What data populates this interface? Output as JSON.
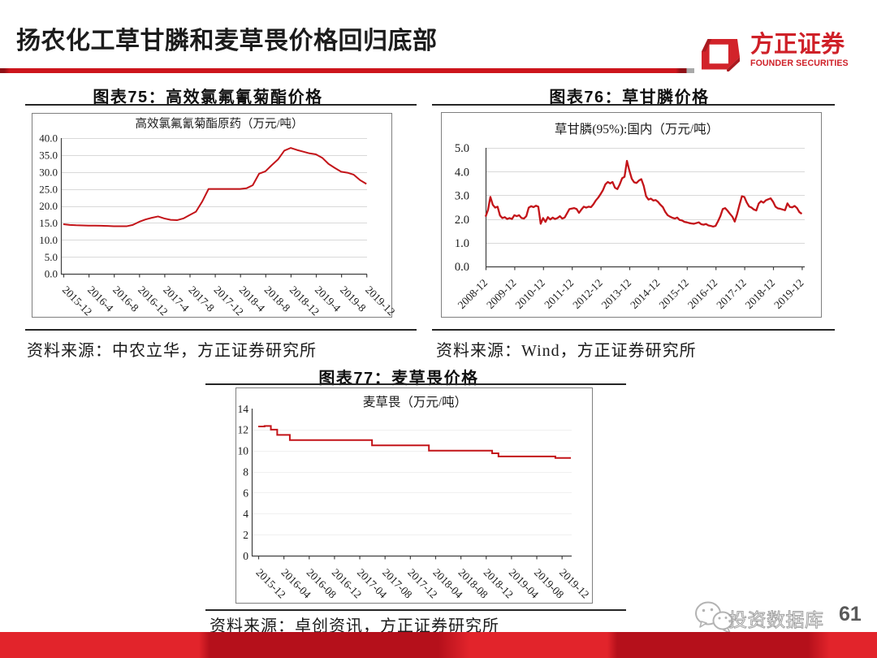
{
  "header": {
    "title": "扬农化工草甘膦和麦草畏价格回归底部",
    "accent_color": "#cd151c",
    "logo": {
      "cn": "方正证券",
      "en": "FOUNDER SECURITIES",
      "color": "#cf2028"
    }
  },
  "figures": [
    {
      "caption": "图表75：高效氯氟氰菊酯价格",
      "source": "资料来源：中农立华，方正证券研究所"
    },
    {
      "caption": "图表76：草甘膦价格",
      "source": "资料来源：Wind，方正证券研究所"
    },
    {
      "caption": "图表77：麦草畏价格",
      "source": "资料来源：卓创资讯，方正证券研究所"
    }
  ],
  "footer": {
    "watermark": "投资数据库",
    "page_number": "61"
  },
  "chart_data": [
    {
      "type": "line",
      "title": "高效氯氟氰菊酯原药（万元/吨）",
      "x_start": "2015-12",
      "x_tick_labels": [
        "2015-12",
        "2016-4",
        "2016-8",
        "2016-12",
        "2017-4",
        "2017-8",
        "2017-12",
        "2018-4",
        "2018-8",
        "2018-12",
        "2019-4",
        "2019-8",
        "2019-12"
      ],
      "months_per_tick": 4,
      "ylim": [
        0,
        40
      ],
      "y_tick_labels": [
        "0.0",
        "5.0",
        "10.0",
        "15.0",
        "20.0",
        "25.0",
        "30.0",
        "35.0",
        "40.0"
      ],
      "grid": true,
      "line_color": "#c31419",
      "series": [
        {
          "name": "高效氯氟氰菊酯原药",
          "values": [
            14.6,
            14.4,
            14.3,
            14.25,
            14.2,
            14.2,
            14.15,
            14.1,
            14.0,
            14.0,
            14.0,
            14.4,
            15.3,
            16.0,
            16.5,
            16.9,
            16.3,
            15.9,
            15.8,
            16.3,
            17.3,
            18.3,
            21.3,
            25.0,
            25.0,
            25.0,
            25.0,
            25.0,
            25.0,
            25.2,
            26.1,
            29.5,
            30.2,
            32.0,
            33.7,
            36.3,
            37.1,
            36.5,
            36.0,
            35.5,
            35.2,
            34.2,
            32.4,
            31.2,
            30.1,
            29.8,
            29.2,
            27.6,
            26.5
          ]
        }
      ]
    },
    {
      "type": "line",
      "title": "草甘膦(95%):国内（万元/吨）",
      "x_start": "2008-12",
      "x_tick_labels": [
        "2008-12",
        "2009-12",
        "2010-12",
        "2011-12",
        "2012-12",
        "2013-12",
        "2014-12",
        "2015-12",
        "2016-12",
        "2017-12",
        "2018-12",
        "2019-12"
      ],
      "months_per_tick": 12,
      "ylim": [
        0,
        5
      ],
      "y_tick_labels": [
        "0.0",
        "1.0",
        "2.0",
        "3.0",
        "4.0",
        "5.0"
      ],
      "grid": true,
      "line_color": "#c31419",
      "series": [
        {
          "name": "草甘膦(95%):国内",
          "values": [
            2.1,
            2.38,
            2.93,
            2.6,
            2.48,
            2.52,
            2.15,
            2.04,
            2.08,
            2,
            2.04,
            2,
            2.16,
            2.12,
            2.16,
            2.04,
            2.02,
            2.12,
            2.48,
            2.54,
            2.5,
            2.56,
            2.52,
            1.8,
            2.04,
            1.88,
            2.08,
            1.98,
            2.06,
            2,
            2.04,
            2.12,
            2.02,
            2.06,
            2.24,
            2.42,
            2.44,
            2.46,
            2.42,
            2.26,
            2.4,
            2.52,
            2.48,
            2.52,
            2.5,
            2.62,
            2.78,
            2.9,
            3.05,
            3.22,
            3.46,
            3.56,
            3.5,
            3.56,
            3.32,
            3.26,
            3.46,
            3.72,
            3.78,
            4.45,
            4.05,
            3.7,
            3.55,
            3.52,
            3.62,
            3.68,
            3.4,
            2.96,
            2.82,
            2.86,
            2.78,
            2.8,
            2.72,
            2.6,
            2.5,
            2.3,
            2.16,
            2.1,
            2.05,
            2.02,
            2.06,
            1.96,
            1.94,
            1.88,
            1.86,
            1.83,
            1.81,
            1.8,
            1.83,
            1.86,
            1.78,
            1.76,
            1.79,
            1.73,
            1.71,
            1.68,
            1.71,
            1.9,
            2.12,
            2.42,
            2.46,
            2.35,
            2.22,
            2.1,
            1.89,
            2.21,
            2.6,
            2.96,
            2.93,
            2.7,
            2.53,
            2.48,
            2.4,
            2.36,
            2.65,
            2.75,
            2.69,
            2.79,
            2.83,
            2.87,
            2.73,
            2.52,
            2.45,
            2.43,
            2.4,
            2.37,
            2.66,
            2.51,
            2.49,
            2.55,
            2.46,
            2.29,
            2.22
          ]
        }
      ]
    },
    {
      "type": "line",
      "step": true,
      "title": "麦草畏（万元/吨）",
      "x_start": "2015-12",
      "x_tick_labels": [
        "2015-12",
        "2016-04",
        "2016-08",
        "2016-12",
        "2017-04",
        "2017-08",
        "2017-12",
        "2018-04",
        "2018-08",
        "2018-12",
        "2019-04",
        "2019-08",
        "2019-12"
      ],
      "months_per_tick": 4,
      "ylim": [
        0,
        14
      ],
      "y_tick_labels": [
        "0",
        "2",
        "4",
        "6",
        "8",
        "10",
        "12",
        "14"
      ],
      "grid": true,
      "line_color": "#c31419",
      "series": [
        {
          "name": "麦草畏",
          "values": [
            12.3,
            12.35,
            12.0,
            11.5,
            11.5,
            11.0,
            11.0,
            11.0,
            11.0,
            11.0,
            11.0,
            11.0,
            11.0,
            11.0,
            11.0,
            11.0,
            11.0,
            11.0,
            10.5,
            10.5,
            10.5,
            10.5,
            10.5,
            10.5,
            10.5,
            10.5,
            10.5,
            10.0,
            10.0,
            10.0,
            10.0,
            10.0,
            10.0,
            10.0,
            10.0,
            10.0,
            10.0,
            9.75,
            9.45,
            9.45,
            9.45,
            9.45,
            9.45,
            9.45,
            9.45,
            9.45,
            9.45,
            9.3,
            9.3
          ]
        }
      ]
    }
  ]
}
